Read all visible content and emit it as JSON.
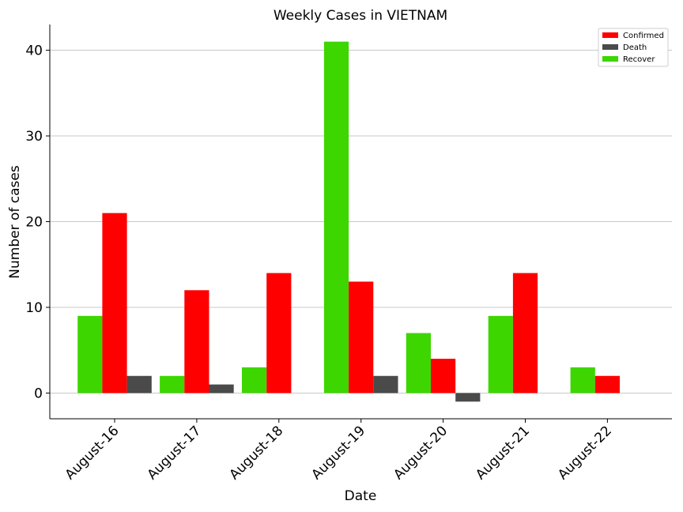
{
  "chart_data": {
    "type": "bar",
    "title": "Weekly Cases in VIETNAM",
    "xlabel": "Date",
    "ylabel": "Number of cases",
    "categories": [
      "August-16",
      "August-17",
      "August-18",
      "August-19",
      "August-20",
      "August-21",
      "August-22"
    ],
    "series": [
      {
        "name": "Recover",
        "color": "#3dd600",
        "values": [
          9,
          2,
          3,
          41,
          7,
          9,
          3
        ]
      },
      {
        "name": "Confirmed",
        "color": "#ff0000",
        "values": [
          21,
          12,
          14,
          13,
          4,
          14,
          2
        ]
      },
      {
        "name": "Death",
        "color": "#4a4a4a",
        "values": [
          2,
          1,
          0,
          2,
          -1,
          0,
          0
        ]
      }
    ],
    "legend_order": [
      "Confirmed",
      "Death",
      "Recover"
    ],
    "yticks": [
      0,
      10,
      20,
      30,
      40
    ],
    "ylim": [
      -3,
      43
    ],
    "grid": "horizontal",
    "legend_position": "top-right"
  }
}
